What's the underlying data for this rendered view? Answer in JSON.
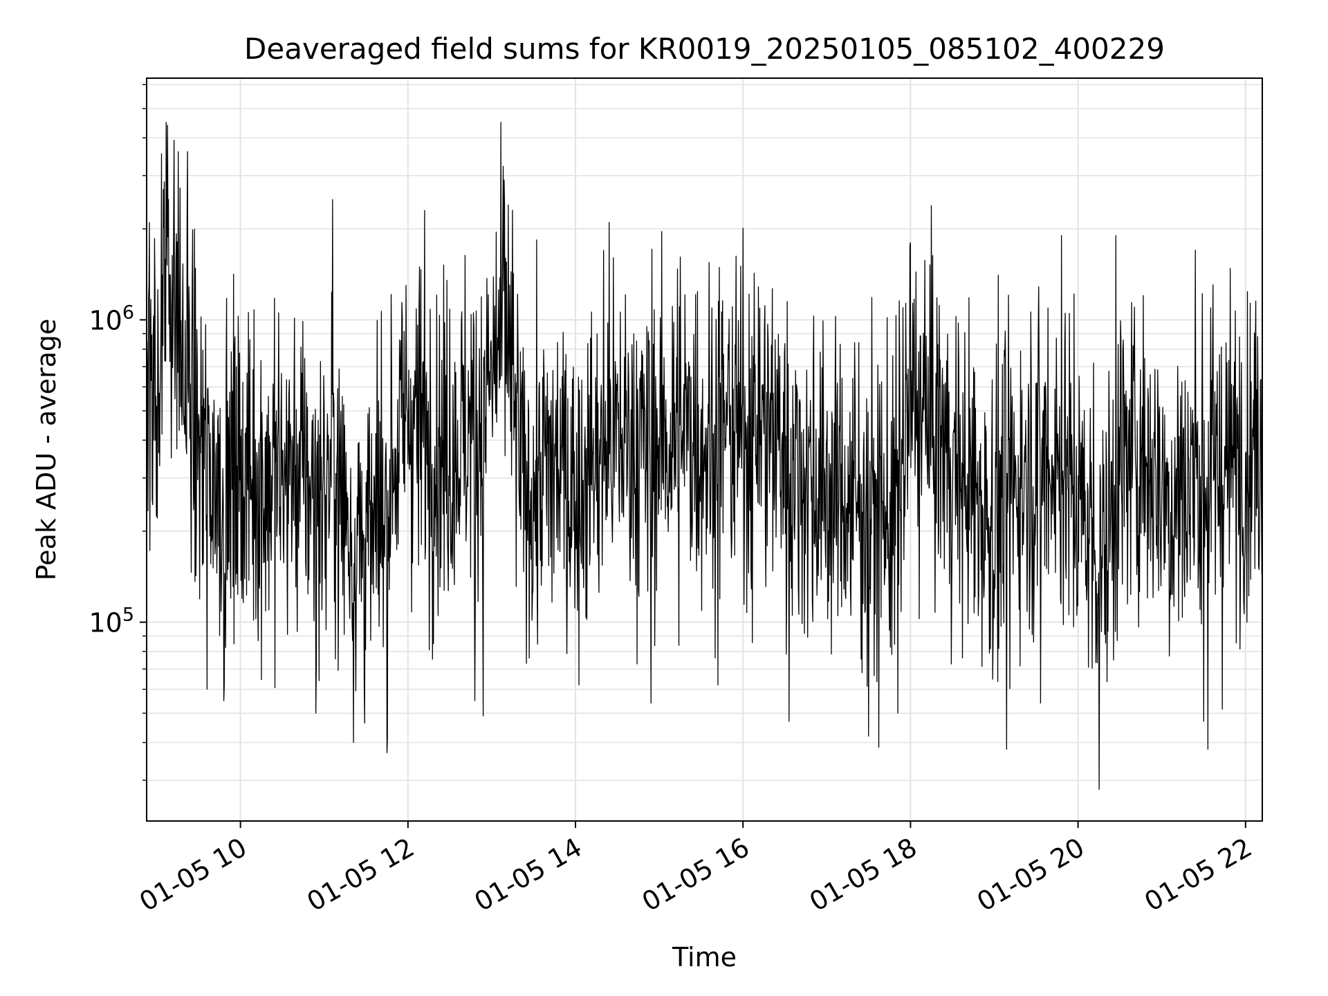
{
  "chart_data": {
    "type": "line",
    "title": "Deaveraged field sums for KR0019_20250105_085102_400229",
    "xlabel": "Time",
    "ylabel": "Peak ADU - average",
    "x_range_hours": [
      8.88,
      22.2
    ],
    "y_scale": "log",
    "y_range": [
      22000,
      6300000
    ],
    "grid": true,
    "legend": "none",
    "line_color": "#000000",
    "x_ticks": [
      {
        "label": "01-05 10",
        "hour": 10
      },
      {
        "label": "01-05 12",
        "hour": 12
      },
      {
        "label": "01-05 14",
        "hour": 14
      },
      {
        "label": "01-05 16",
        "hour": 16
      },
      {
        "label": "01-05 18",
        "hour": 18
      },
      {
        "label": "01-05 20",
        "hour": 20
      },
      {
        "label": "01-05 22",
        "hour": 22
      }
    ],
    "y_major_ticks": [
      {
        "base": "10",
        "exp": "5",
        "value": 100000
      },
      {
        "base": "10",
        "exp": "6",
        "value": 1000000
      }
    ],
    "series": [
      {
        "points": [
          [
            8.88,
            610000
          ],
          [
            9.0,
            480000
          ],
          [
            9.1,
            1900000
          ],
          [
            9.2,
            1200000
          ],
          [
            9.3,
            700000
          ],
          [
            9.4,
            520000
          ],
          [
            9.5,
            380000
          ],
          [
            9.6,
            330000
          ],
          [
            9.7,
            300000
          ],
          [
            9.8,
            280000
          ],
          [
            9.9,
            300000
          ],
          [
            10.0,
            320000
          ],
          [
            10.2,
            300000
          ],
          [
            10.4,
            290000
          ],
          [
            10.6,
            320000
          ],
          [
            10.8,
            300000
          ],
          [
            11.0,
            260000
          ],
          [
            11.1,
            350000
          ],
          [
            11.2,
            250000
          ],
          [
            11.4,
            190000
          ],
          [
            11.6,
            180000
          ],
          [
            11.8,
            330000
          ],
          [
            12.0,
            500000
          ],
          [
            12.2,
            420000
          ],
          [
            12.4,
            370000
          ],
          [
            12.6,
            400000
          ],
          [
            12.8,
            450000
          ],
          [
            13.0,
            620000
          ],
          [
            13.1,
            880000
          ],
          [
            13.2,
            780000
          ],
          [
            13.3,
            420000
          ],
          [
            13.4,
            250000
          ],
          [
            13.6,
            300000
          ],
          [
            13.8,
            330000
          ],
          [
            14.0,
            270000
          ],
          [
            14.2,
            340000
          ],
          [
            14.4,
            390000
          ],
          [
            14.6,
            410000
          ],
          [
            14.8,
            370000
          ],
          [
            15.0,
            400000
          ],
          [
            15.2,
            420000
          ],
          [
            15.4,
            440000
          ],
          [
            15.6,
            390000
          ],
          [
            15.8,
            450000
          ],
          [
            16.0,
            420000
          ],
          [
            16.2,
            470000
          ],
          [
            16.4,
            410000
          ],
          [
            16.6,
            330000
          ],
          [
            16.8,
            300000
          ],
          [
            17.0,
            270000
          ],
          [
            17.2,
            260000
          ],
          [
            17.4,
            250000
          ],
          [
            17.6,
            220000
          ],
          [
            17.8,
            230000
          ],
          [
            18.0,
            520000
          ],
          [
            18.2,
            480000
          ],
          [
            18.4,
            380000
          ],
          [
            18.6,
            300000
          ],
          [
            18.8,
            250000
          ],
          [
            19.0,
            220000
          ],
          [
            19.2,
            280000
          ],
          [
            19.4,
            320000
          ],
          [
            19.6,
            360000
          ],
          [
            19.8,
            330000
          ],
          [
            20.0,
            250000
          ],
          [
            20.2,
            190000
          ],
          [
            20.3,
            160000
          ],
          [
            20.5,
            320000
          ],
          [
            20.7,
            380000
          ],
          [
            20.9,
            330000
          ],
          [
            21.1,
            250000
          ],
          [
            21.3,
            290000
          ],
          [
            21.5,
            300000
          ],
          [
            21.7,
            320000
          ],
          [
            21.9,
            350000
          ],
          [
            22.05,
            380000
          ],
          [
            22.2,
            420000
          ]
        ],
        "extremes": [
          [
            9.08,
            2700000
          ],
          [
            9.13,
            4400000
          ],
          [
            9.26,
            3600000
          ],
          [
            9.37,
            3600000
          ],
          [
            9.6,
            60000
          ],
          [
            9.8,
            55000
          ],
          [
            9.95,
            700000
          ],
          [
            10.9,
            50000
          ],
          [
            11.1,
            2500000
          ],
          [
            11.35,
            40000
          ],
          [
            11.75,
            37000
          ],
          [
            12.2,
            2300000
          ],
          [
            12.8,
            55000
          ],
          [
            12.9,
            49000
          ],
          [
            13.15,
            2900000
          ],
          [
            13.2,
            2400000
          ],
          [
            14.4,
            2100000
          ],
          [
            14.9,
            54000
          ],
          [
            15.7,
            62000
          ],
          [
            16.55,
            47000
          ],
          [
            17.5,
            42000
          ],
          [
            17.85,
            50000
          ],
          [
            18.0,
            1800000
          ],
          [
            19.15,
            38000
          ],
          [
            19.55,
            54000
          ],
          [
            19.8,
            1900000
          ],
          [
            20.25,
            28000
          ],
          [
            20.45,
            1900000
          ],
          [
            21.4,
            1700000
          ],
          [
            21.55,
            38000
          ],
          [
            21.5,
            47000
          ]
        ]
      }
    ]
  }
}
